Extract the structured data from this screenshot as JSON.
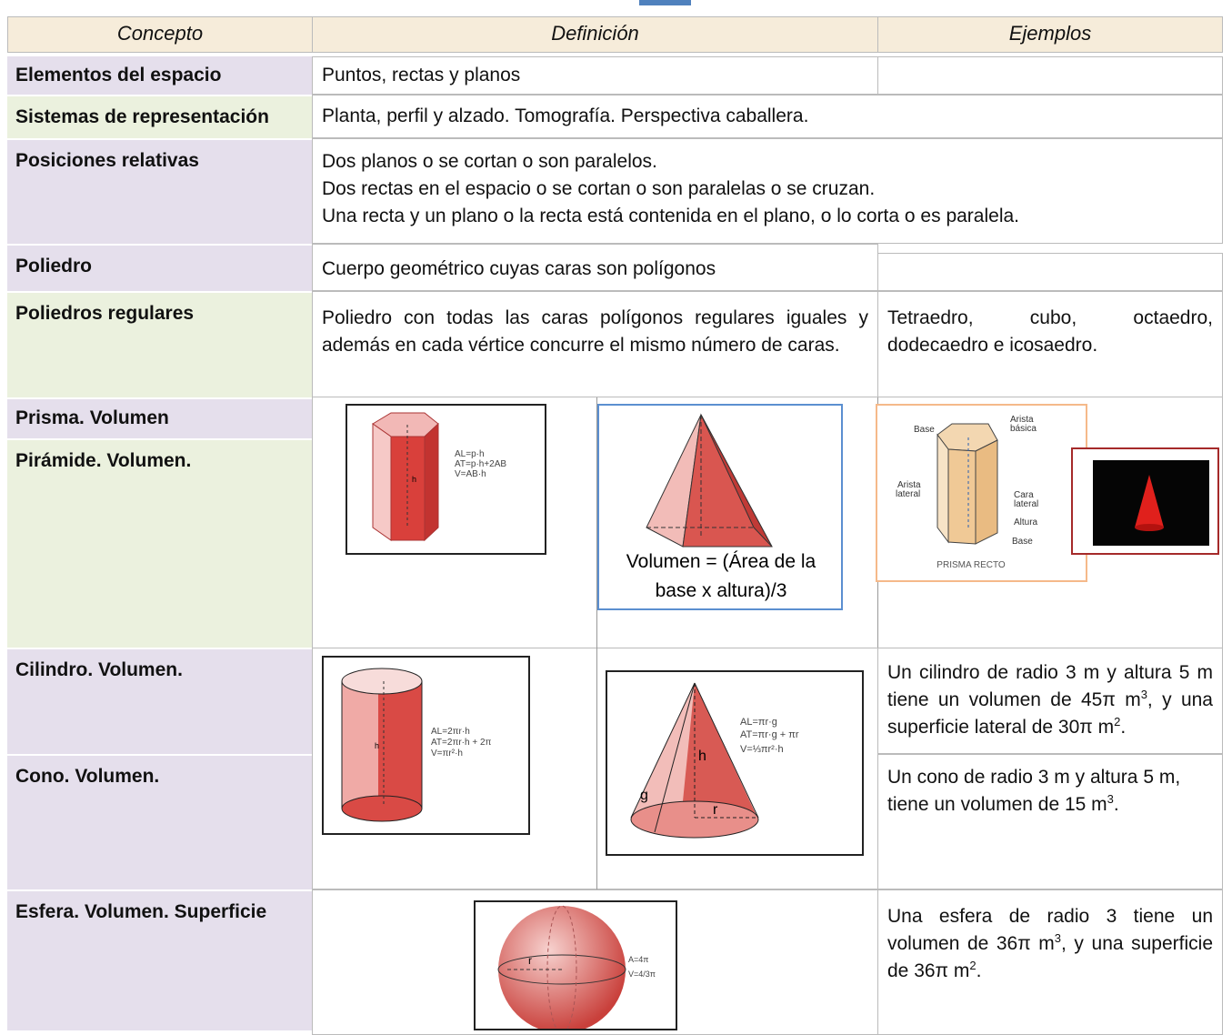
{
  "header": {
    "concept": "Concepto",
    "definition": "Definición",
    "examples": "Ejemplos"
  },
  "rows": [
    {
      "concept": "Elementos del espacio",
      "definition": "Puntos, rectas y planos"
    },
    {
      "concept": "Sistemas de representación",
      "definition": "Planta, perfil y alzado. Tomografía. Perspectiva caballera."
    },
    {
      "concept": "Posiciones relativas",
      "definition": [
        "Dos planos o se cortan o son paralelos.",
        "Dos rectas en el espacio o se cortan o son paralelas o se cruzan.",
        "Una recta y un plano o la recta está contenida en el plano, o lo corta o es paralela."
      ]
    },
    {
      "concept": "Poliedro",
      "definition": "Cuerpo geométrico cuyas caras son polígonos"
    },
    {
      "concept": "Poliedros regulares",
      "definition": "Poliedro con todas las caras polígonos regulares iguales y además en cada vértice concurre el mismo número de caras.",
      "examples": "Tetraedro, cubo, octaedro, dodecaedro e icosaedro."
    },
    {
      "concept": "Prisma. Volumen"
    },
    {
      "concept": "Pirámide. Volumen."
    },
    {
      "concept": "Cilindro. Volumen.",
      "examples": [
        "Un cilindro de radio 3 m y altura 5 m tiene un volumen de 45π m",
        "3",
        ", y una superficie lateral de 30π m",
        "2",
        "."
      ]
    },
    {
      "concept": "Cono. Volumen.",
      "examples": [
        "Un cono de radio 3 m y altura 5 m, tiene un volumen de 15 m",
        "3",
        "."
      ]
    },
    {
      "concept": "Esfera. Volumen. Superficie",
      "examples": [
        "Una esfera de radio 3 tiene un volumen de 36π m",
        "3",
        ", y una superficie de 36π m",
        "2",
        "."
      ]
    }
  ],
  "figures": {
    "prism": {
      "label": "h",
      "formulas": [
        "AL=p·h",
        "AT=p·h+2AB",
        "V=AB·h"
      ]
    },
    "pyramid": {
      "caption": [
        "Volumen = (Área de la",
        "base x altura)/3"
      ]
    },
    "prism_diagram": {
      "labels": [
        "Base",
        "Arista",
        "básica",
        "Arista",
        "lateral",
        "Cara",
        "lateral",
        "Altura",
        "Base"
      ],
      "title": "PRISMA RECTO"
    },
    "cylinder": {
      "label": "h",
      "formulas": [
        "AL=2πr·h",
        "AT=2πr·h + 2π",
        "V=πr²·h"
      ]
    },
    "cone": {
      "labels": [
        "h",
        "g",
        "r"
      ],
      "formulas": [
        "AL=πr·g",
        "AT=πr·g + πr",
        "V=⅓πr²·h"
      ]
    },
    "sphere": {
      "label": "r",
      "formulas": [
        "A=4π",
        "V=4/3π"
      ]
    }
  }
}
